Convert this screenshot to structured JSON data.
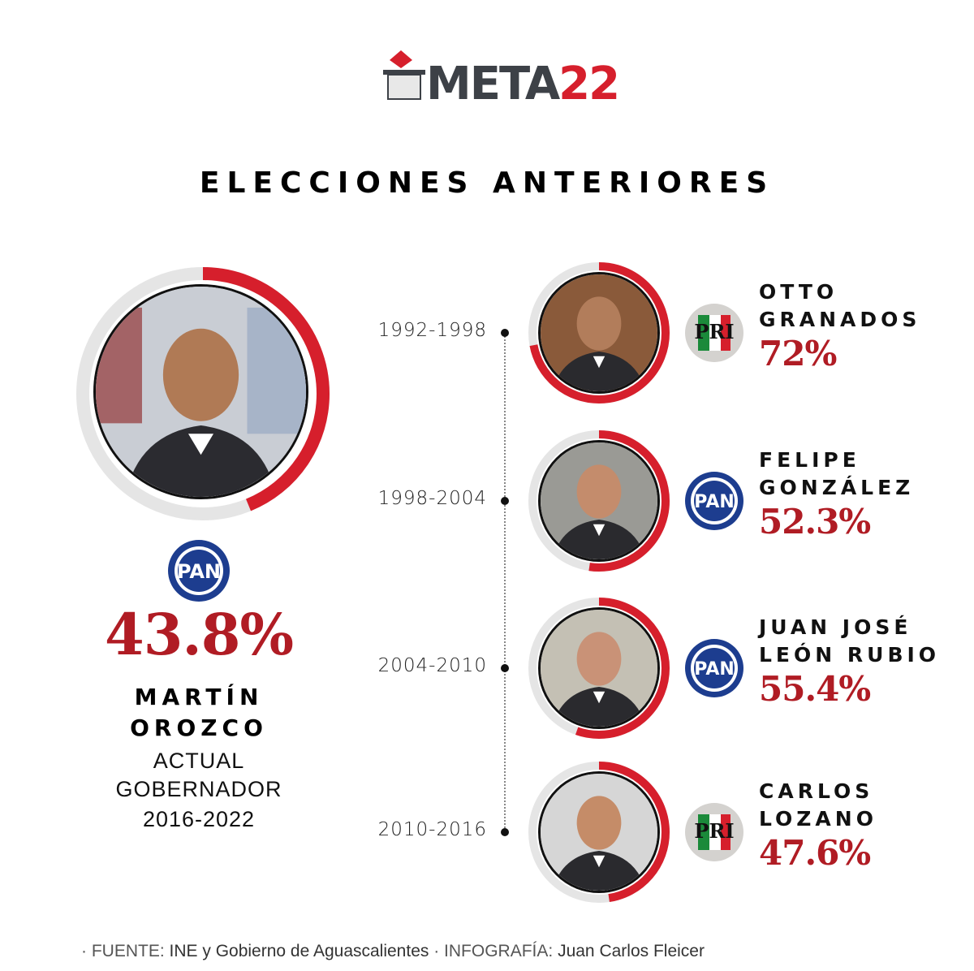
{
  "brand": {
    "logo_word": "META",
    "logo_year": "22",
    "colors": {
      "red": "#d61f2c",
      "dark_red": "#b01c24",
      "gray": "#3d4147",
      "pan_blue": "#1d3d8f",
      "pri_green": "#1b8a3a"
    }
  },
  "title": "ELECCIONES ANTERIORES",
  "current": {
    "party": "PAN",
    "percent": "43.8%",
    "name_line1": "MARTÍN",
    "name_line2": "OROZCO",
    "role_line1": "ACTUAL",
    "role_line2": "GOBERNADOR",
    "term": "2016-2022",
    "share": 0.438,
    "photo_icon": "portrait-photo"
  },
  "timeline": [
    {
      "period": "1992-1998",
      "name_line1": "OTTO",
      "name_line2": "GRANADOS",
      "party": "PRI",
      "percent": "72%",
      "share": 0.72
    },
    {
      "period": "1998-2004",
      "name_line1": "FELIPE",
      "name_line2": "GONZÁLEZ",
      "party": "PAN",
      "percent": "52.3%",
      "share": 0.523
    },
    {
      "period": "2004-2010",
      "name_line1": "JUAN JOSÉ",
      "name_line2": "LEÓN RUBIO",
      "party": "PAN",
      "percent": "55.4%",
      "share": 0.554
    },
    {
      "period": "2010-2016",
      "name_line1": "CARLOS",
      "name_line2": "LOZANO",
      "party": "PRI",
      "percent": "47.6%",
      "share": 0.476
    }
  ],
  "footer": {
    "source_label": "· FUENTE:",
    "source_value": "INE y Gobierno de Aguascalientes",
    "credit_label": "· INFOGRAFÍA:",
    "credit_value": "Juan Carlos Fleicer"
  }
}
